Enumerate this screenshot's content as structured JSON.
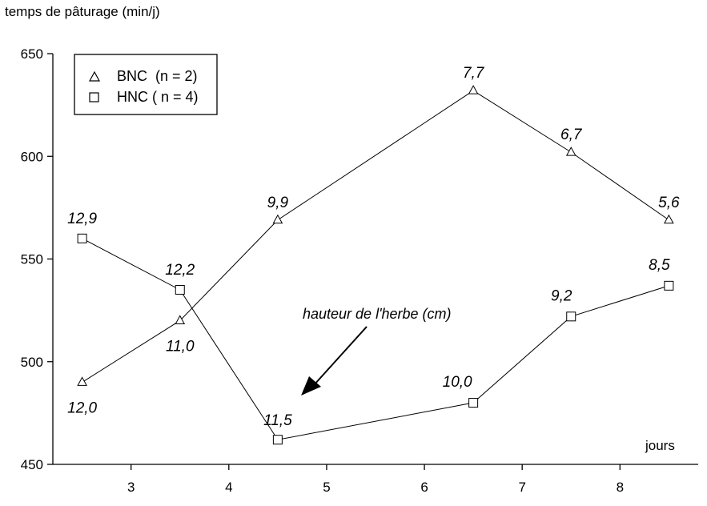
{
  "chart_data": {
    "type": "line",
    "ylabel": "temps de pâturage (min/j)",
    "xlabel": "jours",
    "xlim": [
      2.2,
      8.8
    ],
    "ylim": [
      450,
      650
    ],
    "xticks": [
      3,
      4,
      5,
      6,
      7,
      8
    ],
    "yticks": [
      450,
      500,
      550,
      600,
      650
    ],
    "grid": false,
    "legend_position": "top-left",
    "annotation": "hauteur de l'herbe (cm)",
    "series": [
      {
        "name": "BNC  (n = 2)",
        "marker": "triangle",
        "x": [
          2.5,
          3.5,
          4.5,
          6.5,
          7.5,
          8.5
        ],
        "y": [
          490,
          520,
          569,
          632,
          602,
          569
        ],
        "labels": [
          "12,0",
          "11,0",
          "9,9",
          "7,7",
          "6,7",
          "5,6"
        ]
      },
      {
        "name": "HNC ( n = 4)",
        "marker": "square",
        "x": [
          2.5,
          3.5,
          4.5,
          6.5,
          7.5,
          8.5
        ],
        "y": [
          560,
          535,
          462,
          480,
          522,
          537
        ],
        "labels": [
          "12,9",
          "12,2",
          "11,5",
          "10,0",
          "9,2",
          "8,5"
        ]
      }
    ]
  }
}
